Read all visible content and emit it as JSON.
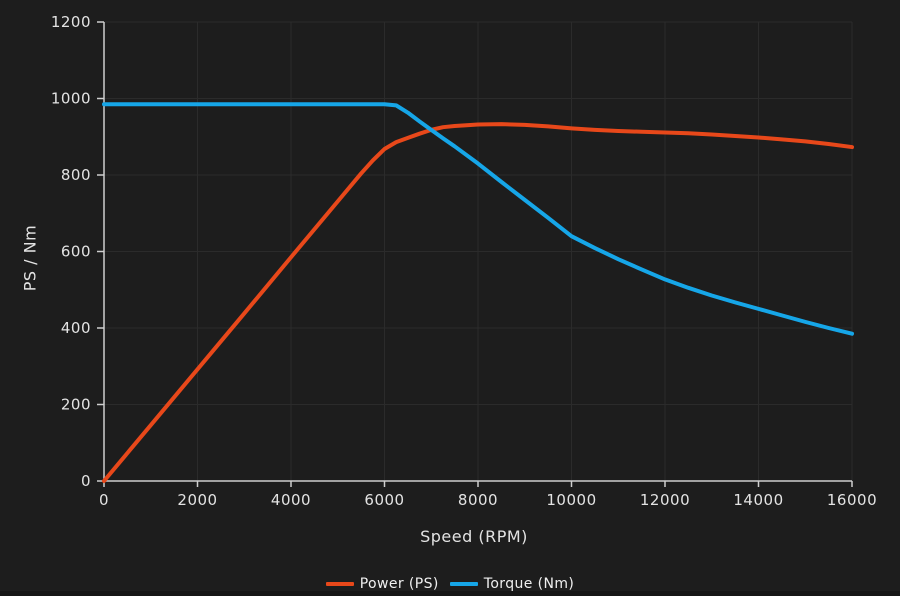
{
  "app": {
    "background_color": "#1d1d1d",
    "bottom_edge_color": "#161616"
  },
  "chart_data": {
    "type": "line",
    "title": "",
    "xlabel": "Speed (RPM)",
    "ylabel": "PS / Nm",
    "xlim": [
      0,
      16000
    ],
    "ylim": [
      0,
      1200
    ],
    "xticks": [
      0,
      2000,
      4000,
      6000,
      8000,
      10000,
      12000,
      14000,
      16000
    ],
    "yticks": [
      0,
      200,
      400,
      600,
      800,
      1000,
      1200
    ],
    "grid": true,
    "legend_position": "bottom-center",
    "axis_color": "#cfcfcf",
    "grid_color": "#2b2b2b",
    "text_color": "#e3e3e3",
    "x": [
      0,
      1000,
      2000,
      3000,
      4000,
      5000,
      5500,
      5750,
      6000,
      6250,
      6500,
      6750,
      7000,
      7250,
      7500,
      8000,
      8500,
      9000,
      9500,
      10000,
      10500,
      11000,
      11500,
      12000,
      12500,
      13000,
      13500,
      14000,
      14500,
      15000,
      15500,
      16000
    ],
    "series": [
      {
        "name": "Power (PS)",
        "color": "#e8481a",
        "values": [
          0,
          146,
          292,
          438,
          585,
          731,
          804,
          838,
          868,
          886,
          897,
          908,
          918,
          925,
          928,
          932,
          933,
          931,
          927,
          922,
          918,
          915,
          913,
          911,
          909,
          906,
          902,
          898,
          893,
          888,
          881,
          873
        ]
      },
      {
        "name": "Torque (Nm)",
        "color": "#16a6e8",
        "values": [
          985,
          985,
          985,
          985,
          985,
          985,
          985,
          985,
          985,
          982,
          963,
          940,
          918,
          896,
          875,
          830,
          782,
          735,
          688,
          640,
          609,
          580,
          553,
          527,
          505,
          485,
          467,
          450,
          433,
          416,
          400,
          385
        ]
      }
    ]
  }
}
